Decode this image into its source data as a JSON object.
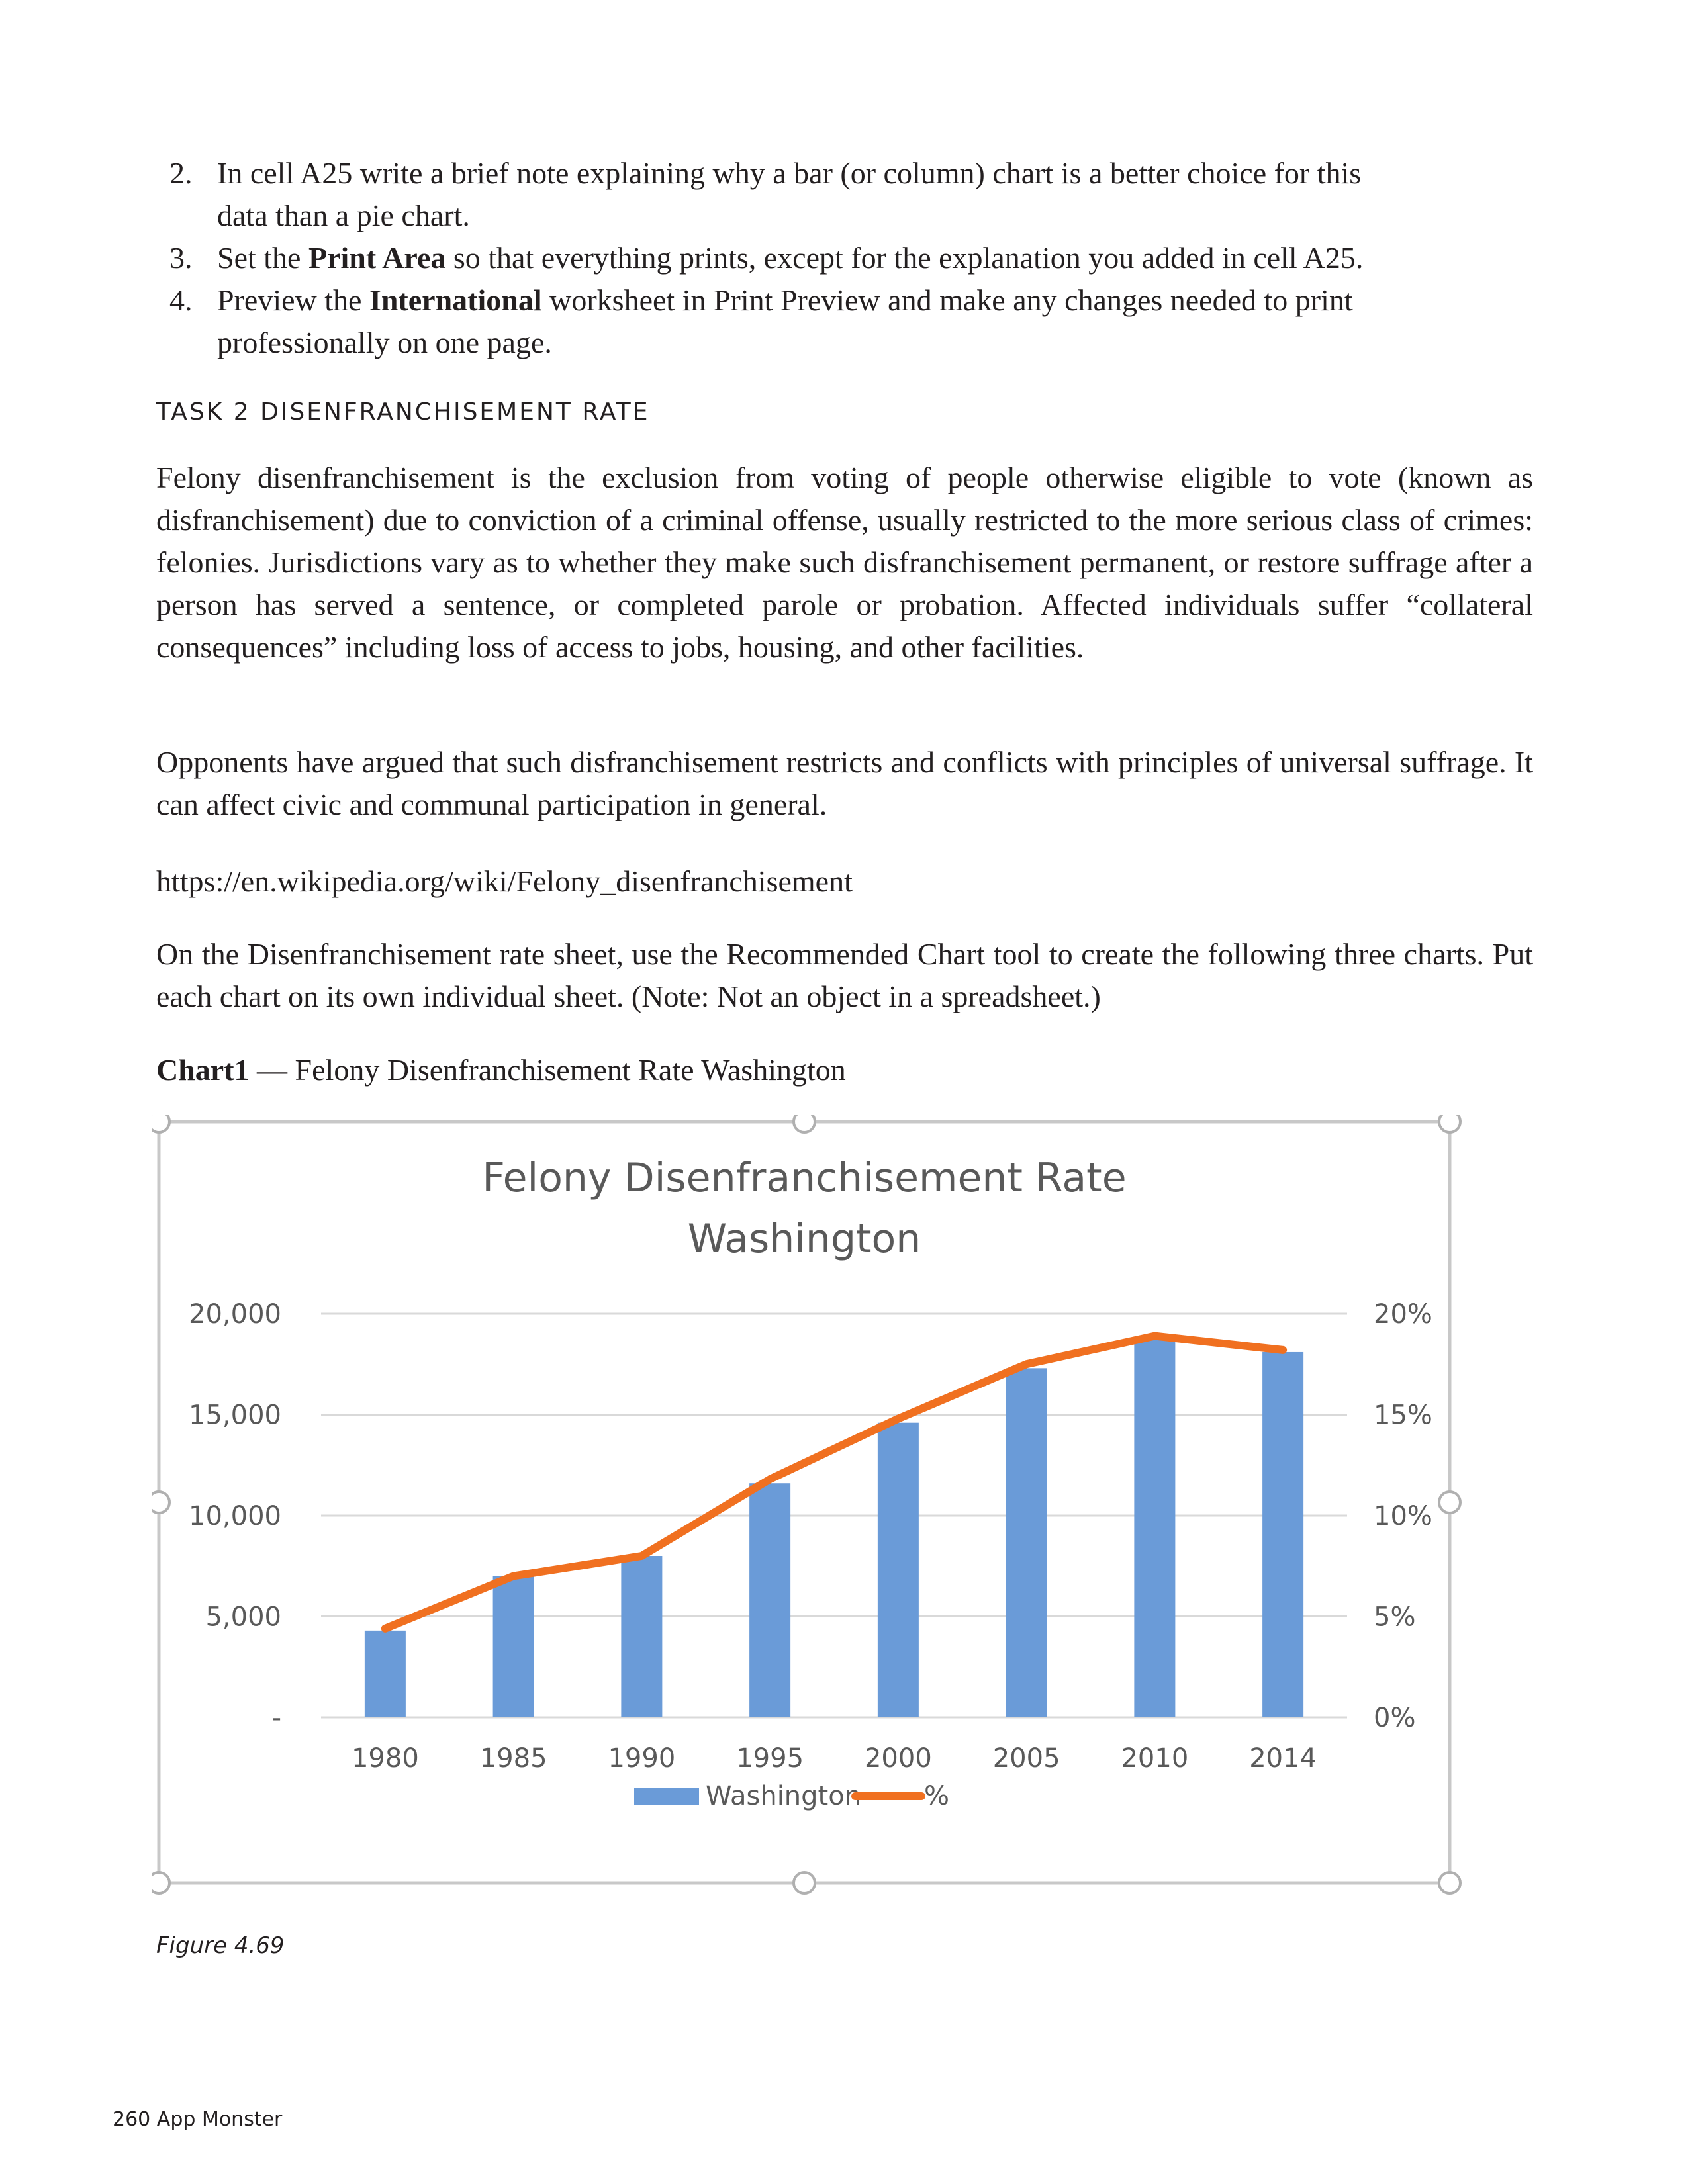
{
  "steps": [
    {
      "number": "2.",
      "line1": "In cell A25 write a brief note explaining why a bar (or column) chart is a better choice for this",
      "line2": "data than a pie chart."
    },
    {
      "number": "3.",
      "pre": "Set the ",
      "bold": "Print Area",
      "post": " so that everything prints, except for the explanation you added in cell A25."
    },
    {
      "number": "4.",
      "pre": "Preview the ",
      "bold": "International",
      "post": " worksheet in Print Preview and make any changes needed to print",
      "line2": "professionally on one page."
    }
  ],
  "task_heading": "TASK 2 DISENFRANCHISEMENT RATE",
  "paragraphs": {
    "p1": "Felony disenfranchisement is the exclusion from voting of people otherwise eligible to vote (known as disfranchisement) due to conviction of a criminal offense, usually restricted to the more serious class of crimes: felonies. Jurisdictions vary as to whether they make such disfranchisement permanent, or restore suffrage after a person has served a sentence, or completed parole or probation. Affected individuals suffer “collateral consequences” including loss of access to jobs, housing, and other facilities.",
    "p2": "Opponents have argued that such disfranchisement restricts and conflicts with principles of universal suffrage. It can affect civic and communal participation in general.",
    "url": "https://en.wikipedia.org/wiki/Felony_disenfranchisement",
    "p3": "On the Disenfranchisement rate sheet, use the Recommended Chart tool to create the following three charts.  Put each chart on its own individual sheet.  (Note:  Not an object in a spreadsheet.)"
  },
  "chart_caption": {
    "bold": "Chart1",
    "rest": " — Felony Disenfranchisement Rate Washington"
  },
  "figure_caption": "Figure 4.69",
  "footer": "260 App Monster",
  "chart_data": {
    "type": "bar",
    "title": [
      "Felony Disenfranchisement Rate",
      "Washington"
    ],
    "categories": [
      "1980",
      "1985",
      "1990",
      "1995",
      "2000",
      "2005",
      "2010",
      "2014"
    ],
    "series": [
      {
        "name": "Washington",
        "type": "bar",
        "axis": "left",
        "color": "#6a9bd8",
        "values": [
          4300,
          7000,
          8000,
          11600,
          14600,
          17300,
          18800,
          18100
        ]
      },
      {
        "name": "%",
        "type": "line",
        "axis": "right",
        "color": "#f07020",
        "values": [
          4.4,
          7.0,
          8.0,
          11.8,
          14.8,
          17.5,
          18.9,
          18.2
        ]
      }
    ],
    "y_left": {
      "lim": [
        0,
        20000
      ],
      "ticks": [
        20000,
        15000,
        10000,
        5000,
        0
      ],
      "tick_labels": [
        "20,000",
        "15,000",
        "10,000",
        "5,000",
        "-"
      ]
    },
    "y_right": {
      "lim": [
        0,
        20
      ],
      "ticks": [
        20,
        15,
        10,
        5,
        0
      ],
      "tick_labels": [
        "20%",
        "15%",
        "10%",
        "5%",
        "0%"
      ]
    },
    "legend": "bottom",
    "grid": true
  }
}
